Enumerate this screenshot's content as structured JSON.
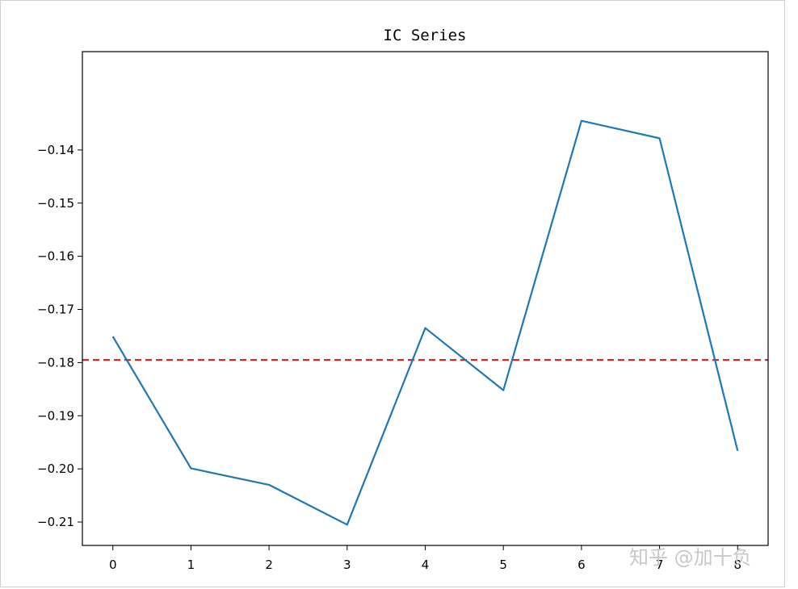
{
  "chart_data": {
    "type": "line",
    "title": "IC Series",
    "xlabel": "",
    "ylabel": "",
    "x": [
      0,
      1,
      2,
      3,
      4,
      5,
      6,
      7,
      8
    ],
    "series": [
      {
        "values": [
          -0.1751,
          -0.1999,
          -0.203,
          -0.2105,
          -0.1735,
          -0.1852,
          -0.1345,
          -0.1378,
          -0.1966
        ],
        "color": "#1f77b4"
      }
    ],
    "mean_line": {
      "value": -0.1795,
      "color": "#d62728",
      "style": "dashed"
    },
    "xticks": [
      0,
      1,
      2,
      3,
      4,
      5,
      6,
      7,
      8
    ],
    "yticks": [
      -0.14,
      -0.15,
      -0.16,
      -0.17,
      -0.18,
      -0.19,
      -0.2,
      -0.21
    ],
    "ytick_labels": [
      "−0.14",
      "−0.15",
      "−0.16",
      "−0.17",
      "−0.18",
      "−0.19",
      "−0.20",
      "−0.21"
    ],
    "xlim": [
      -0.39,
      8.39
    ],
    "ylim": [
      -0.2144,
      -0.1215
    ],
    "grid": false,
    "watermark": "知乎 @加十负"
  }
}
